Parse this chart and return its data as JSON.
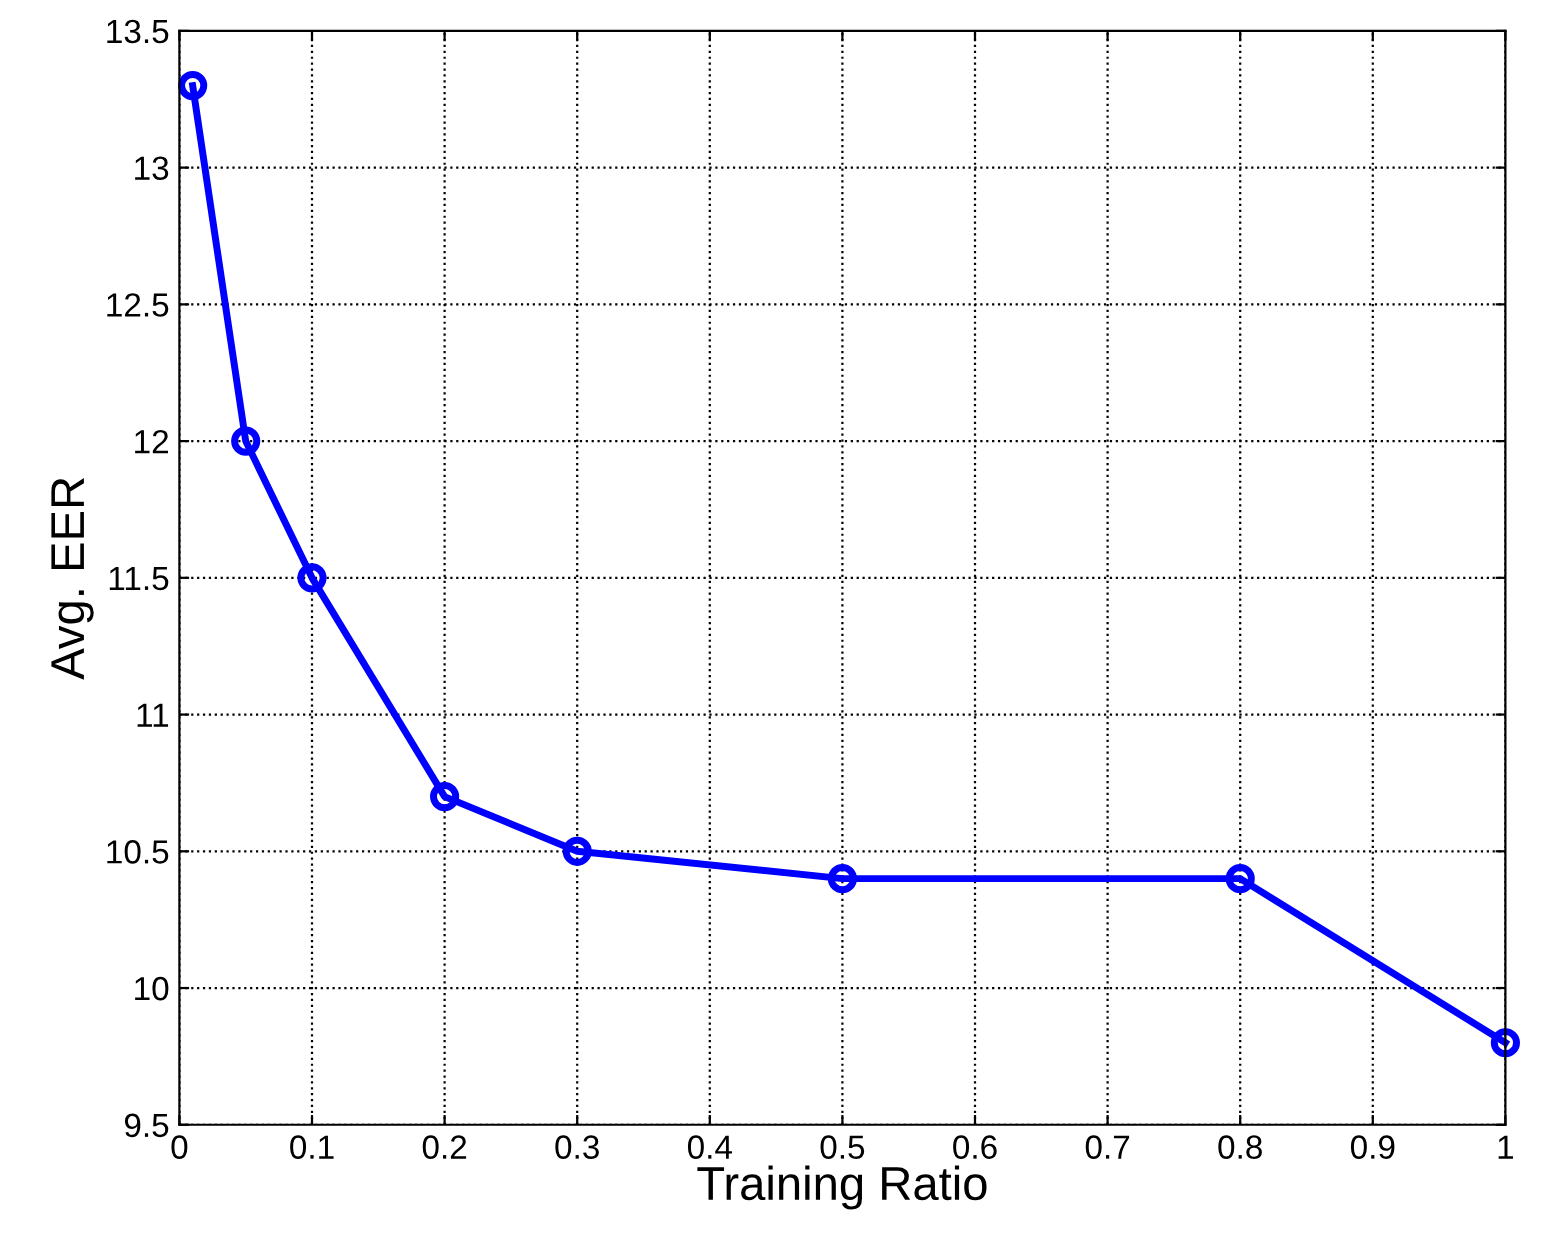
{
  "chart_data": {
    "type": "line",
    "xlabel": "Training Ratio",
    "ylabel": "Avg. EER",
    "x": [
      0.01,
      0.05,
      0.1,
      0.2,
      0.3,
      0.5,
      0.8,
      1.0
    ],
    "series": [
      {
        "color": "#0000ff",
        "values": [
          13.3,
          12.0,
          11.5,
          10.7,
          10.5,
          10.4,
          10.4,
          9.8
        ]
      }
    ],
    "xlim": [
      0,
      1
    ],
    "xticks": [
      0,
      0.1,
      0.2,
      0.3,
      0.4,
      0.5,
      0.6,
      0.7,
      0.8,
      0.9,
      1
    ],
    "ylim": [
      9.5,
      13.5
    ],
    "yticks": [
      9.5,
      10,
      10.5,
      11,
      11.5,
      12,
      12.5,
      13,
      13.5
    ],
    "grid": true,
    "marker": "circle",
    "line_style": "solid",
    "legend": false
  }
}
